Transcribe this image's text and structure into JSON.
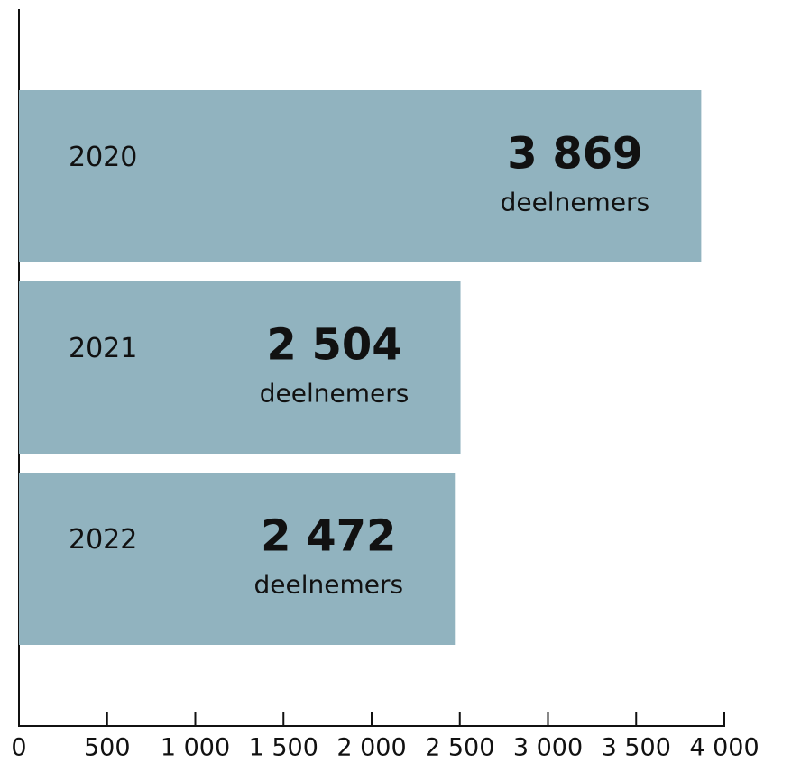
{
  "chart_data": {
    "type": "bar",
    "orientation": "horizontal",
    "categories": [
      "2020",
      "2021",
      "2022"
    ],
    "values": [
      3869,
      2504,
      2472
    ],
    "value_labels": [
      "3 869",
      "2 504",
      "2 472"
    ],
    "unit_label": "deelnemers",
    "color": "#91b3bf",
    "xlim": [
      0,
      4000
    ],
    "xticks": [
      0,
      500,
      {
        "value": 1000,
        "label": "1 000"
      },
      {
        "value": 1500,
        "label": "1 500"
      },
      {
        "value": 2000,
        "label": "2 000"
      },
      {
        "value": 2500,
        "label": "2 500"
      },
      {
        "value": 3000,
        "label": "3 000"
      },
      {
        "value": 3500,
        "label": "3 500"
      },
      {
        "value": 4000,
        "label": "4 000"
      }
    ],
    "grid": false
  }
}
